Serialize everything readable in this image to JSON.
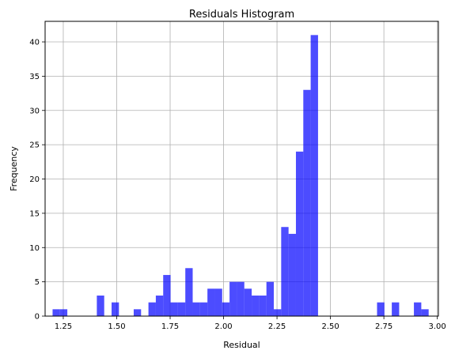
{
  "chart_data": {
    "type": "bar",
    "histogram": true,
    "title": "Residuals Histogram",
    "xlabel": "Residual",
    "ylabel": "Frequency",
    "xlim": [
      1.165,
      3.005
    ],
    "ylim": [
      0,
      43
    ],
    "grid": true,
    "bar_color": "#0000ff",
    "bar_alpha": 0.7,
    "x_ticks": [
      1.25,
      1.5,
      1.75,
      2.0,
      2.25,
      2.5,
      2.75,
      3.0
    ],
    "x_tick_labels": [
      "1.25",
      "1.50",
      "1.75",
      "2.00",
      "2.25",
      "2.50",
      "2.75",
      "3.00"
    ],
    "y_ticks": [
      0,
      5,
      10,
      15,
      20,
      25,
      30,
      35,
      40
    ],
    "y_tick_labels": [
      "0",
      "5",
      "10",
      "15",
      "20",
      "25",
      "30",
      "35",
      "40"
    ],
    "bin_start": 1.2,
    "bin_width": 0.0345,
    "counts": [
      1,
      1,
      0,
      0,
      0,
      0,
      3,
      0,
      2,
      0,
      0,
      1,
      0,
      2,
      3,
      6,
      2,
      2,
      7,
      2,
      2,
      4,
      4,
      2,
      5,
      5,
      4,
      3,
      3,
      5,
      1,
      13,
      12,
      24,
      33,
      41,
      0,
      0,
      0,
      0,
      0,
      0,
      0,
      0,
      2,
      0,
      2,
      0,
      0,
      2,
      1
    ]
  }
}
